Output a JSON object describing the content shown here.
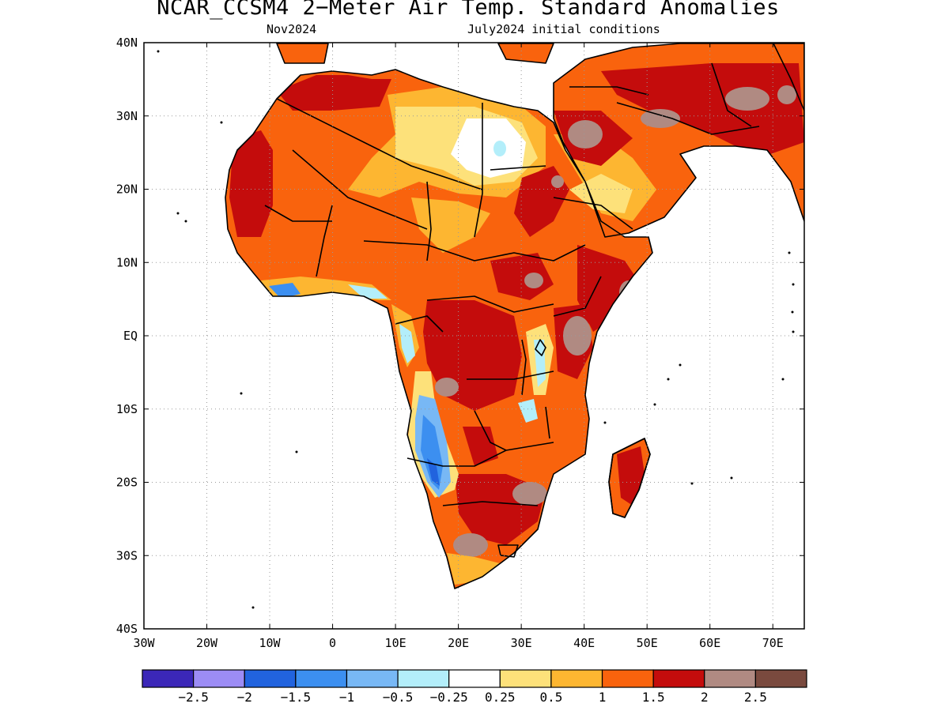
{
  "title": "NCAR_CCSM4 2−Meter Air Temp. Standard Anomalies",
  "subtitle_left": "Nov2024",
  "subtitle_right": "July2024 initial conditions",
  "map": {
    "lon_range": [
      -30,
      75
    ],
    "lat_range": [
      -40,
      40
    ],
    "lat_labels": [
      {
        "lat": 40,
        "text": "40N"
      },
      {
        "lat": 30,
        "text": "30N"
      },
      {
        "lat": 20,
        "text": "20N"
      },
      {
        "lat": 10,
        "text": "10N"
      },
      {
        "lat": 0,
        "text": "EQ"
      },
      {
        "lat": -10,
        "text": "10S"
      },
      {
        "lat": -20,
        "text": "20S"
      },
      {
        "lat": -30,
        "text": "30S"
      },
      {
        "lat": -40,
        "text": "40S"
      }
    ],
    "lon_labels": [
      {
        "lon": -30,
        "text": "30W"
      },
      {
        "lon": -20,
        "text": "20W"
      },
      {
        "lon": -10,
        "text": "10W"
      },
      {
        "lon": 0,
        "text": "0"
      },
      {
        "lon": 10,
        "text": "10E"
      },
      {
        "lon": 20,
        "text": "20E"
      },
      {
        "lon": 30,
        "text": "30E"
      },
      {
        "lon": 40,
        "text": "40E"
      },
      {
        "lon": 50,
        "text": "50E"
      },
      {
        "lon": 60,
        "text": "60E"
      },
      {
        "lon": 70,
        "text": "70E"
      }
    ],
    "gridlines": "dotted"
  },
  "colorbar": {
    "colors": [
      "#3b27b8",
      "#9c8cf5",
      "#2163de",
      "#3c8ff0",
      "#78b8f5",
      "#b3eefa",
      "#ffffff",
      "#fde17a",
      "#fdb631",
      "#f9630d",
      "#c40c0c",
      "#b08a82",
      "#7a4a3e"
    ],
    "labels": [
      "−2.5",
      "−2",
      "−1.5",
      "−1",
      "−0.5",
      "−0.25",
      "0.25",
      "0.5",
      "1",
      "1.5",
      "2",
      "2.5"
    ]
  }
}
